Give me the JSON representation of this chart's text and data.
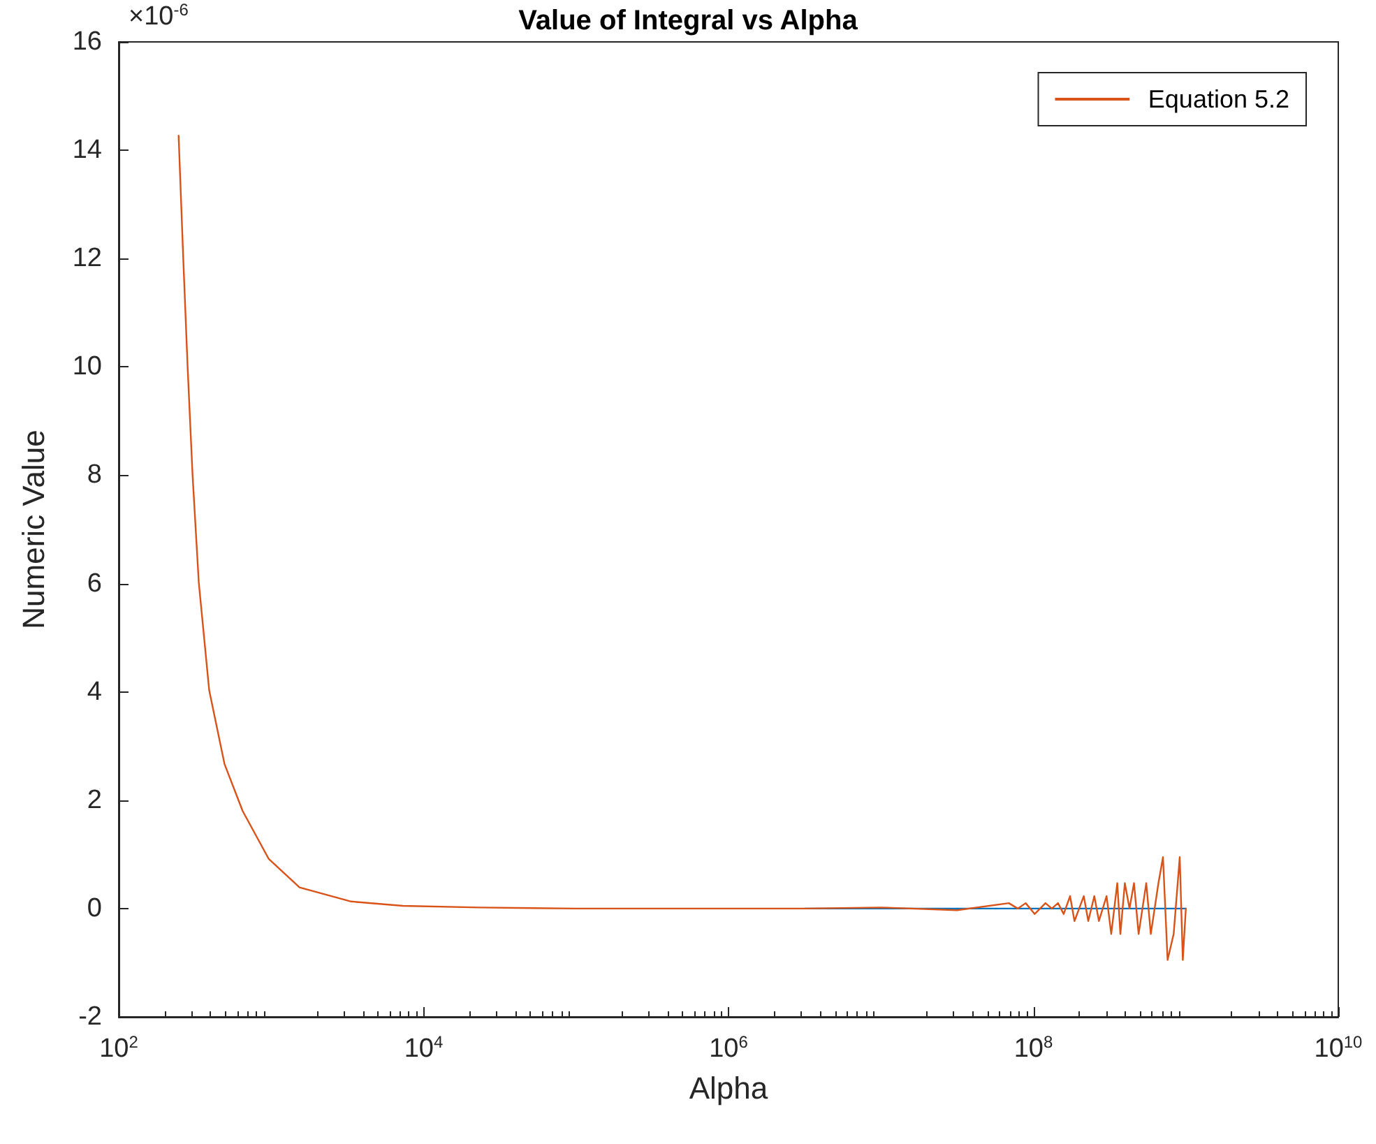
{
  "chart_data": {
    "type": "line",
    "title": "Value of Integral vs Alpha",
    "xlabel": "Alpha",
    "ylabel": "Numeric Value",
    "annotations": [
      "×10$^{-6}$"
    ],
    "log": "x",
    "grid": false,
    "legend": "top right",
    "marker": "none",
    "line_style": "solid",
    "xlim": [
      100,
      10000000000
    ],
    "xticks": [
      {
        "value": 100,
        "label": "10$^{2}$"
      },
      {
        "value": 10000,
        "label": "10$^{4}$"
      },
      {
        "value": 1000000,
        "label": "10$^{6}$"
      },
      {
        "value": 100000000,
        "label": "10$^{8}$"
      },
      {
        "value": 10000000000,
        "label": "10$^{10}$"
      }
    ],
    "ylim": [
      -2,
      16
    ],
    "yticks": [
      -2,
      0,
      2,
      4,
      6,
      8,
      10,
      12,
      14,
      16
    ],
    "series": [
      {
        "color": "#0072bd",
        "x": [
          3160000,
          1000000000
        ],
        "values": [
          0,
          0
        ]
      },
      {
        "name": "Equation 5.2",
        "color": "#d95319",
        "x": [
          247,
          265,
          283,
          305,
          335,
          392,
          494,
          650,
          962,
          1535,
          3350,
          7310,
          23400,
          100000,
          1000000,
          3160000,
          10000000,
          31600000,
          69000000,
          79000000,
          89000000,
          102000000,
          120000000,
          132000000,
          145000000,
          158000000,
          174000000,
          186000000,
          214000000,
          229000000,
          251000000,
          269000000,
          302000000,
          324000000,
          355000000,
          372000000,
          398000000,
          427000000,
          457000000,
          490000000,
          550000000,
          589000000,
          661000000,
          708000000,
          759000000,
          832000000,
          912000000,
          955000000,
          1000000000
        ],
        "values": [
          14.27,
          12.0,
          10.0,
          8.0,
          6.02,
          4.03,
          2.67,
          1.8,
          0.92,
          0.39,
          0.13,
          0.05,
          0.02,
          0,
          0,
          0,
          0.02,
          -0.03,
          0.1,
          0,
          0.1,
          -0.1,
          0.1,
          0,
          0.1,
          -0.1,
          0.23,
          -0.23,
          0.23,
          -0.23,
          0.23,
          -0.23,
          0.23,
          -0.47,
          0.47,
          -0.47,
          0.47,
          0,
          0.47,
          -0.47,
          0.47,
          -0.47,
          0.47,
          0.95,
          -0.95,
          -0.47,
          0.95,
          -0.95,
          0
        ]
      }
    ]
  }
}
